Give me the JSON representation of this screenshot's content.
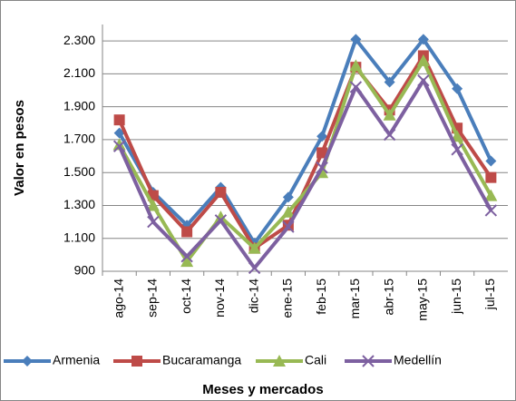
{
  "chart_data": {
    "type": "line",
    "y_label": "Valor en pesos",
    "x_label": "Meses y mercados",
    "categories": [
      "ago-14",
      "sep-14",
      "oct-14",
      "nov-14",
      "dic-14",
      "ene-15",
      "feb-15",
      "mar-15",
      "abr-15",
      "may-15",
      "jun-15",
      "jul-15"
    ],
    "series": [
      {
        "name": "Armenia",
        "color": "#4a7ebb",
        "marker": "diamond",
        "values": [
          1740,
          1380,
          1180,
          1410,
          1070,
          1350,
          1720,
          2310,
          2050,
          2310,
          2010,
          1570
        ]
      },
      {
        "name": "Bucaramanga",
        "color": "#be4b48",
        "marker": "square",
        "values": [
          1820,
          1360,
          1140,
          1380,
          1040,
          1180,
          1620,
          2140,
          1880,
          2210,
          1770,
          1470
        ]
      },
      {
        "name": "Cali",
        "color": "#98b954",
        "marker": "triangle",
        "values": [
          1670,
          1300,
          960,
          1230,
          1040,
          1260,
          1500,
          2150,
          1850,
          2180,
          1720,
          1360
        ]
      },
      {
        "name": "Medellín",
        "color": "#7d60a0",
        "marker": "x",
        "values": [
          1660,
          1200,
          990,
          1210,
          920,
          1170,
          1530,
          2020,
          1730,
          2060,
          1640,
          1270
        ]
      }
    ],
    "ylim": [
      900,
      2400
    ],
    "yticks": [
      {
        "value": 900,
        "label": "900"
      },
      {
        "value": 1100,
        "label": "1.100"
      },
      {
        "value": 1300,
        "label": "1.300"
      },
      {
        "value": 1500,
        "label": "1.500"
      },
      {
        "value": 1700,
        "label": "1.700"
      },
      {
        "value": 1900,
        "label": "1.900"
      },
      {
        "value": 2100,
        "label": "2.100"
      },
      {
        "value": 2300,
        "label": "2.300"
      }
    ],
    "grid": true,
    "legend": "bottom"
  }
}
